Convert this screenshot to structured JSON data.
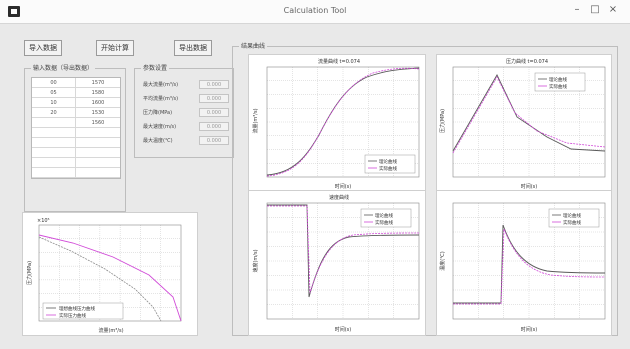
{
  "window": {
    "title": "Calculation Tool",
    "minimize": "–",
    "maximize": "□",
    "close": "×"
  },
  "toolbar": {
    "buttons": [
      "导入数据",
      "开始计算",
      "导出数据"
    ]
  },
  "data_group": {
    "title": "输入数据（导出数据）",
    "rows": [
      [
        "00",
        "1570"
      ],
      [
        "05",
        "1580"
      ],
      [
        "10",
        "1600"
      ],
      [
        "20",
        "1530"
      ],
      [
        "",
        "1560"
      ],
      [
        "",
        ""
      ],
      [
        "",
        ""
      ],
      [
        "",
        ""
      ],
      [
        "",
        ""
      ],
      [
        "",
        ""
      ]
    ]
  },
  "param_group": {
    "title": "参数设置",
    "params": [
      {
        "label": "最大流量(m³/s)",
        "value": "0.000"
      },
      {
        "label": "平均流量(m³/s)",
        "value": "0.000"
      },
      {
        "label": "压力降(MPa)",
        "value": "0.000"
      },
      {
        "label": "最大速度(m/s)",
        "value": "0.000"
      },
      {
        "label": "最大温度(℃)",
        "value": "0.000"
      }
    ]
  },
  "results_group": {
    "title": "结果曲线"
  },
  "plots": {
    "curve": {
      "exponent": "×10⁵",
      "ylabel": "压力(MPa)",
      "xlabel": "流量(m³/s)",
      "legend": [
        "理想曲线压力曲线",
        "实际压力曲线"
      ]
    },
    "top_left": {
      "title": "流量曲线  t=0.074",
      "ylabel": "流量(m³/s)",
      "xlabel": "时间(s)",
      "legend": [
        "理论曲线",
        "实际曲线"
      ]
    },
    "top_right": {
      "title": "压力曲线  t=0.074",
      "ylabel": "压力(MPa)",
      "xlabel": "时间(s)",
      "legend": [
        "理论曲线",
        "实际曲线"
      ]
    },
    "bottom_left": {
      "title": "速度曲线",
      "ylabel": "速度(m/s)",
      "xlabel": "时间(s)",
      "legend": [
        "理论曲线",
        "实际曲线"
      ]
    },
    "bottom_right": {
      "title": "",
      "ylabel": "温度(℃)",
      "xlabel": "时间(s)",
      "legend": [
        "理论曲线",
        "实际曲线"
      ]
    }
  }
}
